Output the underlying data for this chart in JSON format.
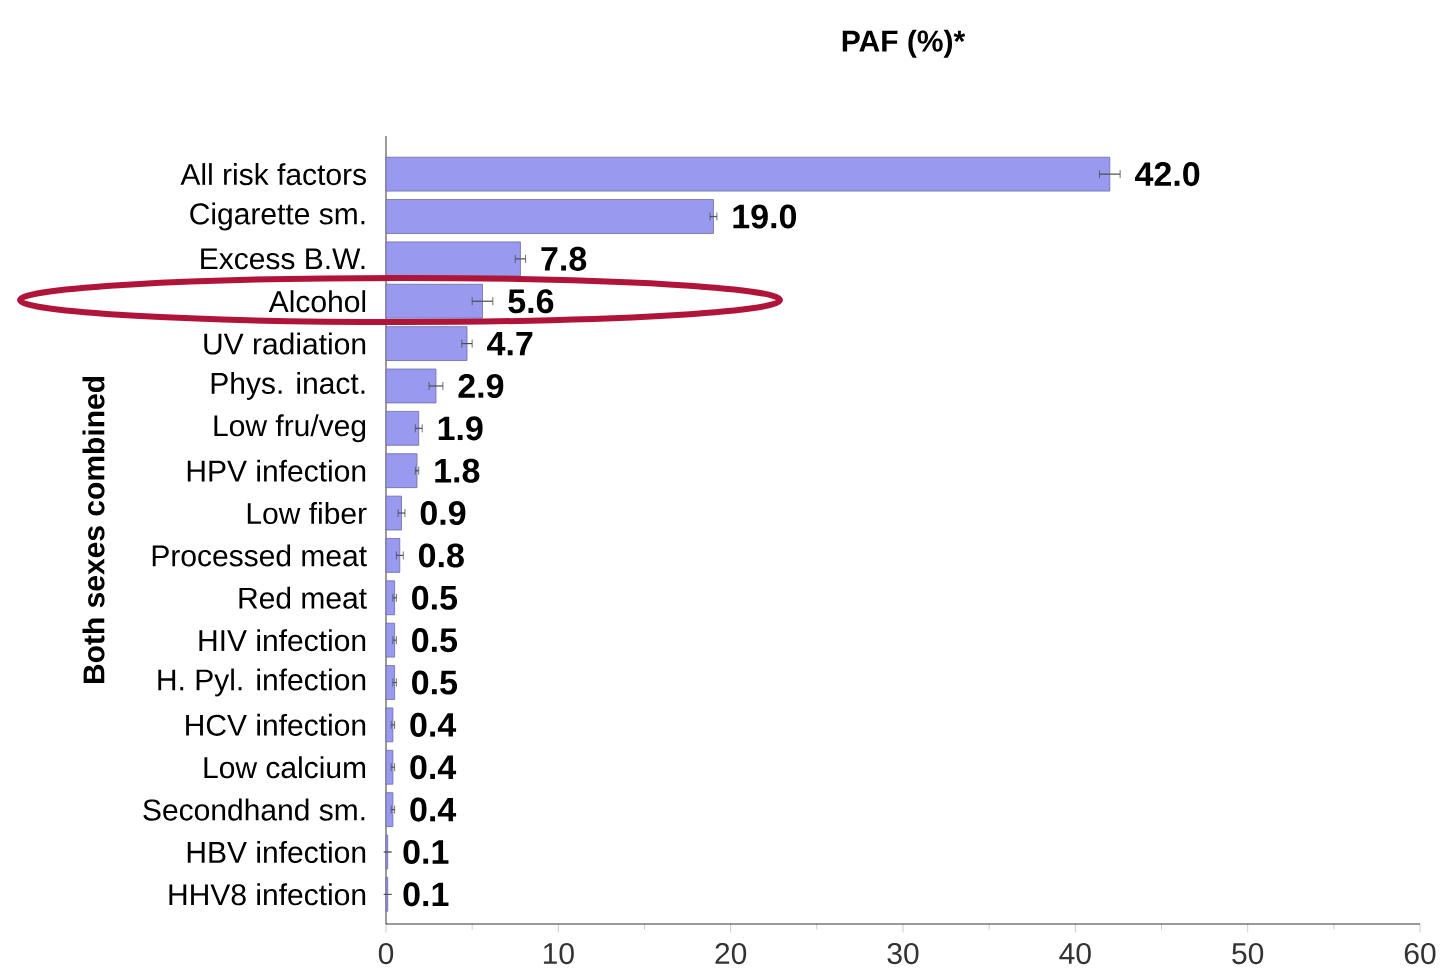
{
  "chart_data": {
    "type": "bar",
    "orientation": "horizontal",
    "title": "PAF (%)*",
    "ylabel": "Both sexes combined",
    "categories": [
      "All risk factors",
      "Cigarette sm.",
      "Excess B.W.",
      "Alcohol",
      "UV radiation",
      "Phys. inact.",
      "Low fru/veg",
      "HPV infection",
      "Low fiber",
      "Processed meat",
      "Red meat",
      "HIV infection",
      "H. Pyl. infection",
      "HCV infection",
      "Low calcium",
      "Secondhand sm.",
      "HBV infection",
      "HHV8 infection"
    ],
    "values": [
      42.0,
      19.0,
      7.8,
      5.6,
      4.7,
      2.9,
      1.9,
      1.8,
      0.9,
      0.8,
      0.5,
      0.5,
      0.5,
      0.4,
      0.4,
      0.4,
      0.1,
      0.1
    ],
    "errors": [
      0.6,
      0.2,
      0.3,
      0.6,
      0.3,
      0.4,
      0.2,
      0.1,
      0.2,
      0.2,
      0.1,
      0.1,
      0.1,
      0.1,
      0.1,
      0.1,
      null,
      null
    ],
    "value_labels": [
      "42.0",
      "19.0",
      "7.8",
      "5.6",
      "4.7",
      "2.9",
      "1.9",
      "1.8",
      "0.9",
      "0.8",
      "0.5",
      "0.5",
      "0.5",
      "0.4",
      "0.4",
      "0.4",
      "0.1",
      "0.1"
    ],
    "color": "#9999f0",
    "xlim": [
      0,
      60
    ],
    "xticks": [
      0,
      10,
      20,
      30,
      40,
      50,
      60
    ],
    "grid": false
  }
}
